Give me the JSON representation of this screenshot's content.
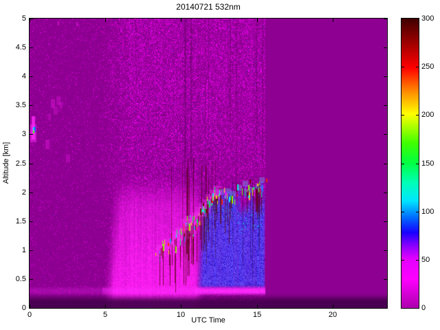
{
  "title": "20140721 532nm",
  "axes": {
    "xlabel": "UTC Time",
    "ylabel": "Altitude [km]",
    "xlim": [
      0,
      23.6
    ],
    "ylim": [
      0,
      5
    ],
    "x_ticks": [
      0,
      5,
      10,
      15,
      20
    ],
    "y_ticks": [
      0,
      0.5,
      1,
      1.5,
      2,
      2.5,
      3,
      3.5,
      4,
      4.5,
      5
    ]
  },
  "colorbar": {
    "min": 0,
    "max": 300,
    "ticks": [
      0,
      50,
      100,
      150,
      200,
      250,
      300
    ],
    "stops": [
      [
        0,
        "#ad00ad"
      ],
      [
        30,
        "#ff00ff"
      ],
      [
        51,
        "#e300ff"
      ],
      [
        66,
        "#8000ff"
      ],
      [
        78,
        "#1a00ff"
      ],
      [
        93,
        "#0066ff"
      ],
      [
        111,
        "#00e5ff"
      ],
      [
        129,
        "#00ffbb"
      ],
      [
        150,
        "#00ff44"
      ],
      [
        171,
        "#40ff00"
      ],
      [
        201,
        "#ffff00"
      ],
      [
        225,
        "#ff8800"
      ],
      [
        249,
        "#ff0000"
      ],
      [
        279,
        "#8f0000"
      ],
      [
        300,
        "#3f0000"
      ]
    ]
  },
  "chart_data": {
    "type": "heatmap",
    "title": "20140721 532nm",
    "xlabel": "UTC Time",
    "ylabel": "Altitude [km]",
    "xlim": [
      0,
      23.6
    ],
    "ylim": [
      0,
      5
    ],
    "clim": [
      0,
      300
    ],
    "legend_position": "right-colorbar",
    "grid": false,
    "data_end_utc": 15.55,
    "background_value": 10,
    "palette": {
      "base": "#8e0092",
      "bright": "#ff00ff",
      "pink": "#ff1ef5",
      "pink_hot": "#ff7dfa",
      "blue": "#3a1fe8",
      "blue_light": "#6c5cff",
      "blue_dark": "#1b0bb0",
      "cyan": "#00cfe8",
      "band": "#ff2bff",
      "ground_dark": "#43004c",
      "dark_noise": "#5e0060"
    },
    "features": [
      {
        "name": "no_data_zone",
        "t": [
          15.55,
          23.6
        ],
        "alt": [
          0,
          5
        ],
        "value": 10,
        "desc": "uniform magenta, lidar off"
      },
      {
        "name": "clear_air_noise",
        "t": [
          0,
          15.55
        ],
        "alt": [
          0,
          5
        ],
        "value_range": [
          5,
          45
        ],
        "desc": "speckle noise, denser after UTC 5 and at high altitude"
      },
      {
        "name": "boundary_layer",
        "t": [
          4.8,
          11.6
        ],
        "alt": [
          0.3,
          2.35
        ],
        "value_range": [
          25,
          48
        ],
        "desc": "bright magenta aerosol boundary layer"
      },
      {
        "name": "blue_airmass",
        "t": [
          10.9,
          15.55
        ],
        "alt": [
          0.36,
          2.0
        ],
        "value_range": [
          55,
          80
        ],
        "desc": "violet-blue low layer"
      },
      {
        "name": "surface_band",
        "t": [
          10.9,
          15.55
        ],
        "alt": [
          0.22,
          0.38
        ],
        "value_range": [
          35,
          45
        ],
        "desc": "bright magenta band near 0.3 km"
      },
      {
        "name": "incomplete_overlap",
        "t": [
          0,
          23.6
        ],
        "alt": [
          0,
          0.25
        ],
        "desc": "dark band below 0.25 km"
      },
      {
        "name": "cumulus_clouds",
        "t": [
          8.5,
          15.4
        ],
        "alt": [
          0.95,
          2.2
        ],
        "value_range": [
          150,
          300
        ],
        "desc": "colored cloud speckles rising from 1 km to 2 km"
      },
      {
        "name": "morning_cloud",
        "t": [
          0.15,
          0.55
        ],
        "alt": [
          3.0,
          3.35
        ],
        "value_range": [
          80,
          200
        ],
        "desc": "small cloud, cyan/green core with magenta halo"
      }
    ],
    "cloud_clusters": [
      [
        8.6,
        1.0,
        0
      ],
      [
        9.05,
        1.1,
        0
      ],
      [
        9.35,
        1.05,
        0
      ],
      [
        9.6,
        1.22,
        0
      ],
      [
        9.85,
        1.3,
        0
      ],
      [
        10.1,
        1.27,
        0
      ],
      [
        10.3,
        1.45,
        0
      ],
      [
        10.55,
        1.5,
        0
      ],
      [
        10.75,
        1.38,
        0
      ],
      [
        10.95,
        1.55,
        0
      ],
      [
        11.15,
        1.65,
        0
      ],
      [
        11.4,
        1.72,
        0
      ],
      [
        11.6,
        1.78,
        0
      ],
      [
        11.85,
        1.88,
        0
      ],
      [
        12.1,
        1.95,
        0
      ],
      [
        12.35,
        2.02,
        0
      ],
      [
        12.7,
        1.98,
        1
      ],
      [
        13.05,
        2.0,
        1
      ],
      [
        13.45,
        1.95,
        1
      ],
      [
        13.85,
        2.05,
        1
      ],
      [
        14.25,
        2.12,
        1
      ],
      [
        14.7,
        2.02,
        1
      ],
      [
        15.1,
        2.08,
        1
      ],
      [
        15.35,
        2.18,
        1
      ]
    ],
    "speckle_colors": [
      "#6e0400",
      "#6e0400",
      "#ff2400",
      "#ffd900",
      "#8cff00",
      "#00ff66",
      "#00ffff",
      "#2f8cff",
      "#ff00ff"
    ],
    "left_spot": {
      "t": 0.3,
      "alt": 3.15
    },
    "faint_blobs": [
      [
        1.5,
        3.55
      ],
      [
        1.7,
        3.42
      ],
      [
        1.85,
        3.6
      ],
      [
        1.3,
        3.3
      ],
      [
        2.05,
        3.5
      ],
      [
        1.15,
        2.85
      ],
      [
        2.5,
        2.6
      ]
    ],
    "top_dashes": [
      [
        1.85,
        4.92
      ],
      [
        3.1,
        4.9
      ]
    ]
  }
}
